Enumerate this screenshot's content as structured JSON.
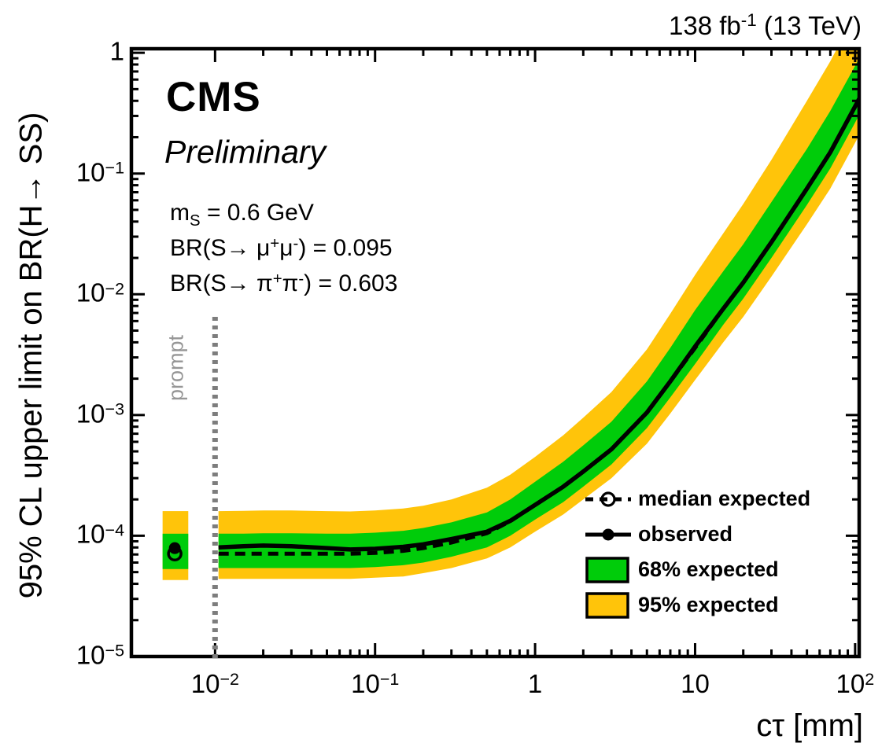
{
  "header": {
    "lumi": {
      "runs": [
        {
          "t": "138 fb"
        },
        {
          "t": "-1",
          "v": "sup"
        },
        {
          "t": " (13 TeV)"
        }
      ]
    }
  },
  "experiment": {
    "name": "CMS",
    "label_type": "Preliminary"
  },
  "annotations": {
    "mass": {
      "runs": [
        {
          "t": "m"
        },
        {
          "t": "S",
          "v": "sub"
        },
        {
          "t": " = 0.6 GeV"
        }
      ]
    },
    "br_mumu": {
      "runs": [
        {
          "t": "BR(S→ μ"
        },
        {
          "t": "+",
          "v": "sup"
        },
        {
          "t": "μ"
        },
        {
          "t": "-",
          "v": "sup"
        },
        {
          "t": ") = 0.095"
        }
      ]
    },
    "br_pipi": {
      "runs": [
        {
          "t": "BR(S→ π"
        },
        {
          "t": "+",
          "v": "sup"
        },
        {
          "t": "π"
        },
        {
          "t": "-",
          "v": "sup"
        },
        {
          "t": ") = 0.603"
        }
      ]
    },
    "prompt_label": "prompt"
  },
  "colors": {
    "band_68": "#00cc0a",
    "band_95": "#ffc40a",
    "observed": "#000000",
    "median_expected": "#000000",
    "prompt_line": "#7d7d7d",
    "prompt_text": "#969696",
    "frame": "#000000",
    "background": "#ffffff"
  },
  "legend": {
    "items": [
      {
        "label": "median expected",
        "marker": "dashed-line-open-circle"
      },
      {
        "label": "observed",
        "marker": "solid-line-filled-circle"
      },
      {
        "label": "68% expected",
        "marker": "green-box"
      },
      {
        "label": "95% expected",
        "marker": "yellow-box"
      }
    ]
  },
  "chart_data": {
    "type": "line",
    "title": "",
    "xlabel": "cτ [mm]",
    "ylabel": "95% CL upper limit on BR(H→ SS)",
    "xscale": "log",
    "yscale": "log",
    "xlim": [
      0.003,
      106
    ],
    "ylim": [
      1e-05,
      1.08
    ],
    "grid": false,
    "legend_position": "right-middle",
    "x_axis": {
      "ticks": [
        {
          "value": 0.01,
          "base": "10",
          "exp": "-2"
        },
        {
          "value": 0.1,
          "base": "10",
          "exp": "-1"
        },
        {
          "value": 1,
          "base": "1"
        },
        {
          "value": 10,
          "base": "10"
        },
        {
          "value": 100,
          "base": "10",
          "exp": "2"
        }
      ]
    },
    "y_axis": {
      "ticks": [
        {
          "value": 1,
          "base": "1"
        },
        {
          "value": 0.1,
          "base": "10",
          "exp": "-1"
        },
        {
          "value": 0.01,
          "base": "10",
          "exp": "-2"
        },
        {
          "value": 0.001,
          "base": "10",
          "exp": "-3"
        },
        {
          "value": 0.0001,
          "base": "10",
          "exp": "-4"
        },
        {
          "value": 1e-05,
          "base": "10",
          "exp": "-5"
        }
      ]
    },
    "prompt_line_x": 0.01,
    "x": [
      0.0105,
      0.015,
      0.02,
      0.03,
      0.05,
      0.07,
      0.1,
      0.15,
      0.2,
      0.3,
      0.5,
      0.7,
      1,
      1.5,
      2,
      3,
      5,
      7,
      10,
      15,
      20,
      30,
      50,
      70,
      100
    ],
    "series": [
      {
        "name": "95% expected high",
        "values": [
          0.00016,
          0.000161,
          0.000162,
          0.000162,
          0.00016,
          0.000159,
          0.000162,
          0.000168,
          0.000177,
          0.0002,
          0.00025,
          0.00032,
          0.00045,
          0.00068,
          0.00095,
          0.00155,
          0.0035,
          0.0069,
          0.0145,
          0.032,
          0.056,
          0.13,
          0.4,
          0.85,
          2.1
        ]
      },
      {
        "name": "95% expected low",
        "values": [
          4.4e-05,
          4.4e-05,
          4.4e-05,
          4.4e-05,
          4.4e-05,
          4.4e-05,
          4.5e-05,
          4.6e-05,
          4.9e-05,
          5.4e-05,
          6.5e-05,
          8e-05,
          0.000108,
          0.00015,
          0.0002,
          0.0003,
          0.00058,
          0.00103,
          0.00195,
          0.004,
          0.0065,
          0.014,
          0.038,
          0.075,
          0.18
        ]
      },
      {
        "name": "68% expected high",
        "values": [
          0.000104,
          0.000104,
          0.000105,
          0.000105,
          0.000104,
          0.000104,
          0.000106,
          0.00011,
          0.000116,
          0.000129,
          0.000156,
          0.0002,
          0.00028,
          0.00041,
          0.00056,
          0.00088,
          0.0019,
          0.0036,
          0.0074,
          0.0155,
          0.026,
          0.058,
          0.16,
          0.33,
          0.78
        ]
      },
      {
        "name": "68% expected low",
        "values": [
          5.4e-05,
          5.4e-05,
          5.4e-05,
          5.4e-05,
          5.4e-05,
          5.4e-05,
          5.5e-05,
          5.7e-05,
          6e-05,
          6.7e-05,
          8e-05,
          0.0001,
          0.000136,
          0.00019,
          0.000255,
          0.00039,
          0.00078,
          0.0014,
          0.00265,
          0.0056,
          0.0092,
          0.02,
          0.055,
          0.11,
          0.265
        ]
      },
      {
        "name": "median expected",
        "values": [
          7.1e-05,
          7.1e-05,
          7.1e-05,
          7.1e-05,
          7.1e-05,
          7.1e-05,
          7.2e-05,
          7.5e-05,
          7.9e-05,
          8.8e-05,
          0.000105,
          0.000132,
          0.00018,
          0.000255,
          0.00034,
          0.00052,
          0.00105,
          0.0019,
          0.0036,
          0.0076,
          0.0125,
          0.027,
          0.075,
          0.15,
          0.36
        ]
      },
      {
        "name": "observed",
        "values": [
          8e-05,
          8.2e-05,
          8.3e-05,
          8.2e-05,
          7.9e-05,
          7.7e-05,
          7.8e-05,
          8.1e-05,
          8.5e-05,
          9.4e-05,
          0.000108,
          0.000133,
          0.00018,
          0.000255,
          0.00034,
          0.00052,
          0.00105,
          0.0019,
          0.0037,
          0.0076,
          0.0125,
          0.027,
          0.075,
          0.15,
          0.36
        ]
      }
    ],
    "prompt_point": {
      "x": 0.0056,
      "x_range": [
        0.0047,
        0.0068
      ],
      "observed": 7.9e-05,
      "median_expected": 7.1e-05,
      "band_68": [
        5.3e-05,
        0.000104
      ],
      "band_95": [
        4.3e-05,
        0.00016
      ]
    }
  }
}
